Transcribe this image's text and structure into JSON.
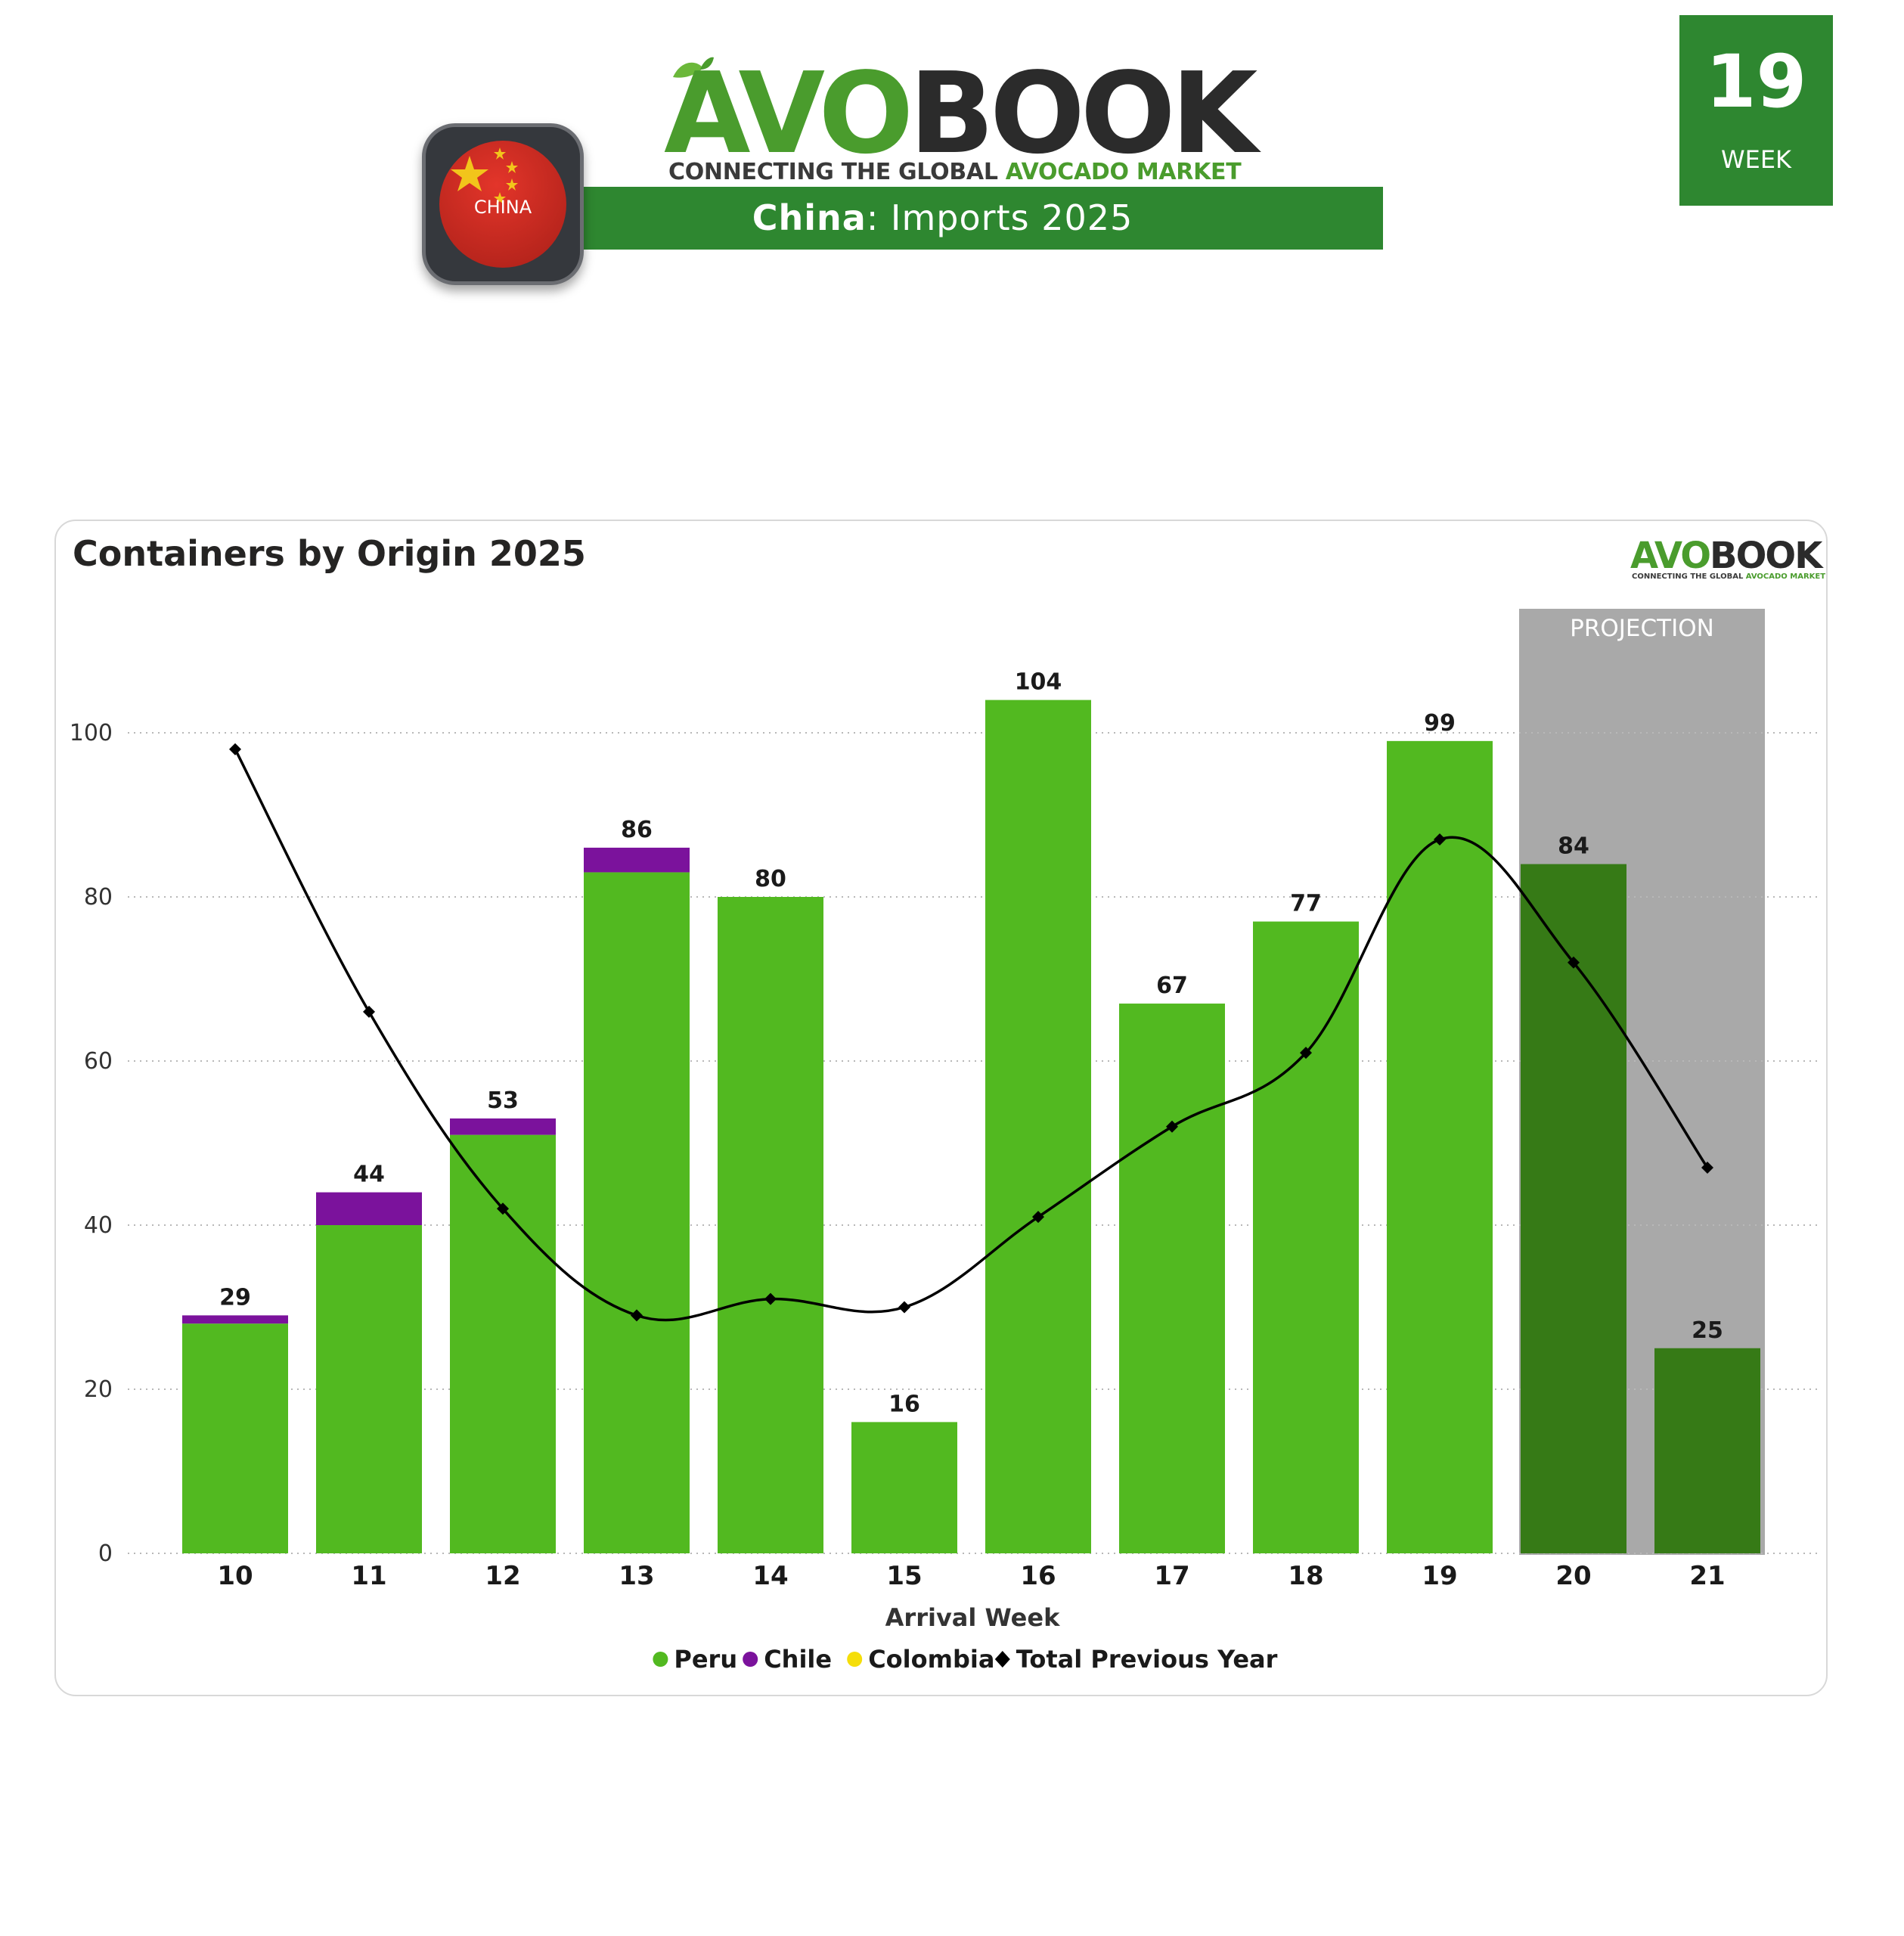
{
  "header": {
    "logo": {
      "brand_part1": "AVO",
      "brand_part2": "BOOK",
      "tagline_part1": "CONNECTING THE GLOBAL ",
      "tagline_part2": "AVOCADO MARKET"
    },
    "banner": {
      "country": "China",
      "rest": ": Imports 2025"
    },
    "flag_badge_label": "CHINA",
    "week": {
      "number": "19",
      "label": "WEEK"
    }
  },
  "colors": {
    "brand_green": "#2e8730",
    "logo_green": "#4a9c2d",
    "peru": "#52b920",
    "peru_projection": "#367a16",
    "chile": "#7b129c",
    "colombia": "#f5de0a",
    "line": "#000000",
    "projection_band": "#a9a9a9"
  },
  "chart_data": {
    "type": "bar",
    "title": "Containers by Origin 2025",
    "xlabel": "Arrival Week",
    "ylabel": "",
    "categories": [
      "10",
      "11",
      "12",
      "13",
      "14",
      "15",
      "16",
      "17",
      "18",
      "19",
      "20",
      "21"
    ],
    "series": [
      {
        "name": "Peru",
        "type": "bar",
        "stacked": true,
        "values": [
          28,
          40,
          51,
          83,
          80,
          16,
          104,
          67,
          77,
          99,
          84,
          25
        ]
      },
      {
        "name": "Chile",
        "type": "bar",
        "stacked": true,
        "values": [
          1,
          4,
          2,
          3,
          0,
          0,
          0,
          0,
          0,
          0,
          0,
          0
        ]
      },
      {
        "name": "Colombia",
        "type": "bar",
        "stacked": true,
        "values": [
          0,
          0,
          0,
          0,
          0,
          0,
          0,
          0,
          0,
          0,
          0,
          0
        ]
      },
      {
        "name": "Total Previous Year",
        "type": "line",
        "marker": "diamond",
        "values": [
          98,
          66,
          42,
          29,
          31,
          30,
          41,
          52,
          61,
          87,
          72,
          47
        ]
      }
    ],
    "totals": [
      "29",
      "44",
      "53",
      "86",
      "80",
      "16",
      "104",
      "67",
      "77",
      "99",
      "84",
      "25"
    ],
    "projection": {
      "label": "PROJECTION",
      "categories": [
        "20",
        "21"
      ]
    },
    "yticks": [
      "0",
      "20",
      "40",
      "60",
      "80",
      "100"
    ],
    "ylim": [
      0,
      110
    ],
    "grid": true,
    "legend_position": "bottom-center",
    "legend": [
      {
        "name": "Peru",
        "marker": "circle",
        "color": "#52b920"
      },
      {
        "name": "Chile",
        "marker": "circle",
        "color": "#7b129c"
      },
      {
        "name": "Colombia",
        "marker": "circle",
        "color": "#f5de0a"
      },
      {
        "name": "Total Previous Year",
        "marker": "diamond",
        "color": "#000000"
      }
    ]
  }
}
